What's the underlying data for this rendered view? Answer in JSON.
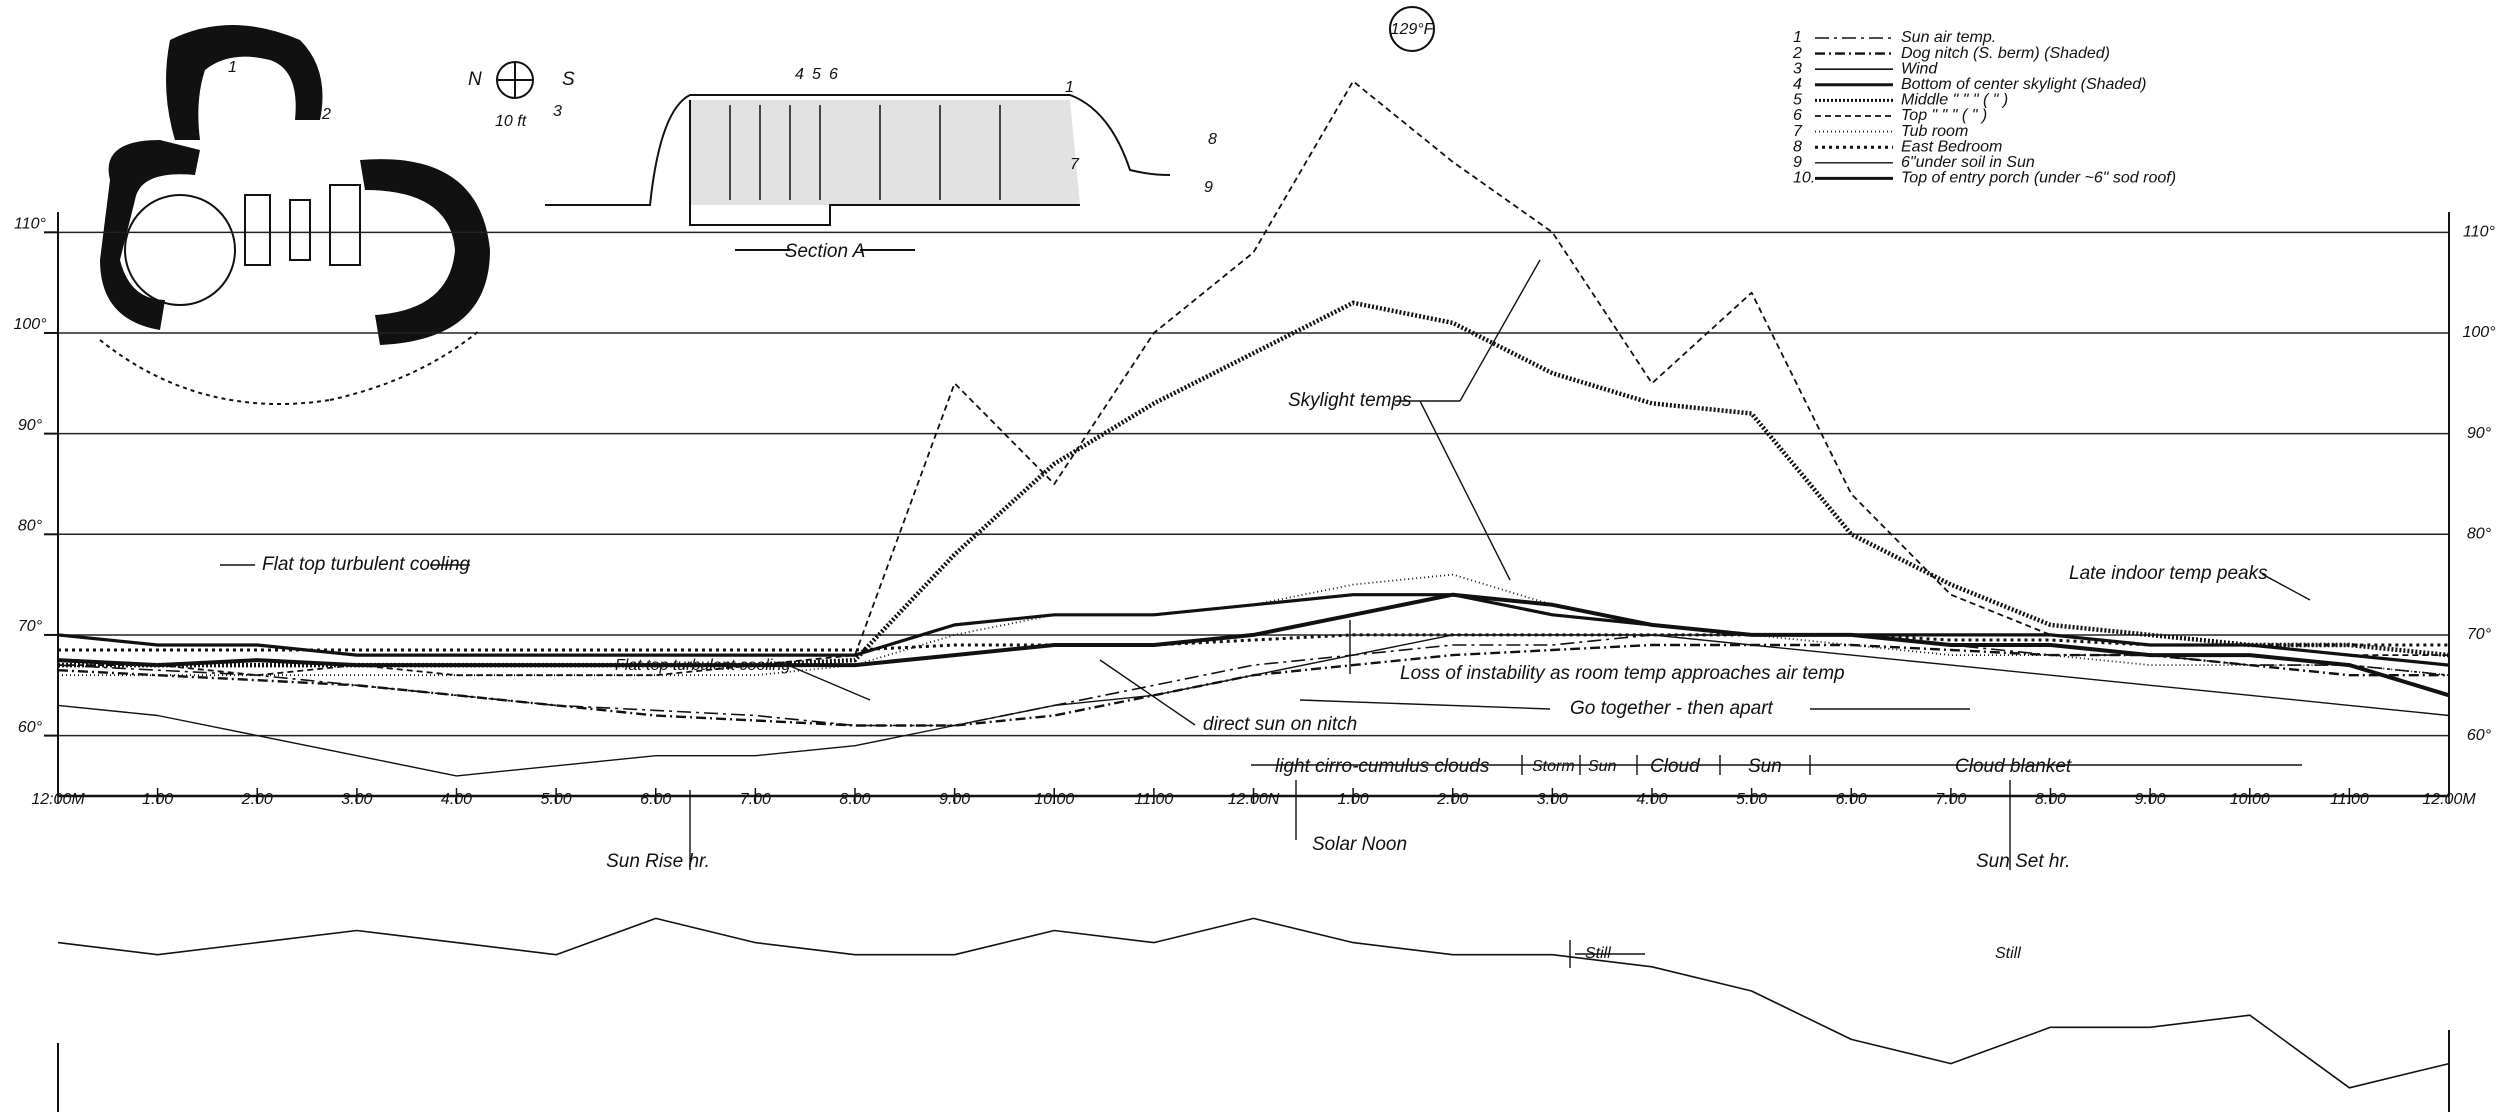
{
  "chart_data": {
    "type": "line",
    "categories": [
      "12:00M",
      "1:00",
      "2:00",
      "3:00",
      "4:00",
      "5:00",
      "6:00",
      "7:00",
      "8:00",
      "9:00",
      "10:00",
      "11:00",
      "12:00N",
      "1:00",
      "2:00",
      "3:00",
      "4:00",
      "5:00",
      "6:00",
      "7:00",
      "8:00",
      "9:00",
      "10:00",
      "11:00",
      "12:00M"
    ],
    "ylim": [
      54,
      130
    ],
    "yticks": [
      {
        "value": 60,
        "label": "60°"
      },
      {
        "value": 70,
        "label": "70°"
      },
      {
        "value": 80,
        "label": "80°"
      },
      {
        "value": 90,
        "label": "90°"
      },
      {
        "value": 100,
        "label": "100°"
      },
      {
        "value": 110,
        "label": "110°"
      }
    ],
    "y2lim": [
      0,
      10
    ],
    "grid": true,
    "series": [
      {
        "key": "1",
        "name": "Sun air temp.",
        "color": "#111",
        "dash": "14 5 3 5",
        "width": 1.6,
        "values": [
          67,
          66.5,
          66,
          65,
          64,
          63,
          62.5,
          62,
          61,
          61,
          63,
          65,
          67,
          68,
          69,
          69,
          70,
          70,
          70,
          69,
          68,
          68,
          67,
          67,
          66
        ]
      },
      {
        "key": "2",
        "name": "Dog nitch (S. berm) (Shaded)",
        "color": "#111",
        "dash": "10 4 2 4",
        "width": 2.4,
        "values": [
          66.5,
          66,
          65.5,
          65,
          64,
          63,
          62,
          61.5,
          61,
          61,
          62,
          64,
          66,
          67,
          68,
          68.5,
          69,
          69,
          69,
          68.5,
          68,
          68,
          67,
          66,
          66
        ]
      },
      {
        "key": "3",
        "name": "Wind",
        "color": "#111",
        "dash": "",
        "width": 1.6,
        "axis": "y2",
        "values": [
          7,
          6.5,
          7,
          7.5,
          7,
          6.5,
          8,
          7,
          6.5,
          6.5,
          7.5,
          7,
          8,
          7,
          6.5,
          6.5,
          6,
          5,
          3,
          2,
          3.5,
          3.5,
          4,
          1,
          2
        ]
      },
      {
        "key": "4",
        "name": "Bottom of center skylight (Shaded)",
        "color": "#111",
        "dash": "",
        "width": 4,
        "values": [
          67.5,
          67,
          67.5,
          67,
          67,
          67,
          67,
          67,
          67,
          68,
          69,
          69,
          70,
          72,
          74,
          73,
          71,
          70,
          70,
          69,
          69,
          68,
          68,
          67,
          64
        ]
      },
      {
        "key": "5",
        "name": "Middle \"  \"  \"  ( \" )",
        "color": "#111",
        "dash": "2 2",
        "width": 4.5,
        "values": [
          67,
          67,
          67,
          67,
          67,
          67,
          67,
          67,
          67.5,
          78,
          87,
          93,
          98,
          103,
          101,
          96,
          93,
          92,
          80,
          75,
          71,
          70,
          69,
          69,
          68
        ]
      },
      {
        "key": "6",
        "name": "Top  \"  \"  \"  ( \" )",
        "color": "#111",
        "dash": "6 4",
        "width": 1.8,
        "values": [
          67,
          67,
          66,
          67,
          66,
          66,
          66,
          67,
          68,
          95,
          85,
          100,
          108,
          125,
          117,
          110,
          95,
          104,
          84,
          74,
          70,
          69,
          69,
          68,
          68
        ]
      },
      {
        "key": "7",
        "name": "Tub room",
        "color": "#111",
        "dash": "1 3",
        "width": 1.8,
        "values": [
          66,
          66,
          66,
          66,
          66,
          66,
          66,
          66,
          67,
          70,
          72,
          72,
          73,
          75,
          76,
          73,
          71,
          70,
          69,
          68,
          68,
          67,
          67,
          67,
          66
        ]
      },
      {
        "key": "8",
        "name": "East Bedroom",
        "color": "#111",
        "dash": "3 4",
        "width": 3,
        "values": [
          68.5,
          68.5,
          68.5,
          68.5,
          68.5,
          68.5,
          68.5,
          68.5,
          68.5,
          69,
          69,
          69,
          69.5,
          70,
          70,
          70,
          70,
          70,
          70,
          69.5,
          69.5,
          69,
          69,
          69,
          69
        ]
      },
      {
        "key": "9",
        "name": "6\"under soil in Sun",
        "color": "#111",
        "dash": "",
        "width": 1.4,
        "values": [
          63,
          62,
          60,
          58,
          56,
          57,
          58,
          58,
          59,
          61,
          63,
          64,
          66,
          68,
          70,
          70,
          70,
          69,
          68,
          67,
          66,
          65,
          64,
          63,
          62
        ]
      },
      {
        "key": "10.",
        "name": "Top of entry porch (under ~6\" sod roof)",
        "color": "#111",
        "dash": "",
        "width": 3.2,
        "values": [
          70,
          69,
          69,
          68,
          68,
          68,
          68,
          68,
          68,
          71,
          72,
          72,
          73,
          74,
          74,
          72,
          71,
          70,
          70,
          70,
          70,
          69,
          69,
          68,
          67
        ]
      }
    ],
    "peak_label": "129°F",
    "annotations": [
      "Flat top turbulent cooling",
      "Flat top turbulent cooling",
      "Skylight temps",
      "Late indoor temp peaks",
      "Loss of instability as room temp approaches air temp",
      "Go together - then apart",
      "direct sun on nitch",
      "Sun Rise hr.",
      "Solar Noon",
      "Sun Set hr.",
      "Still",
      "Still"
    ],
    "sky": [
      "light cirro-cumulus clouds",
      "Storm",
      "Sun",
      "Cloud",
      "Sun",
      "Cloud blanket"
    ]
  },
  "drawings": {
    "section_title": "Section A",
    "north": "N",
    "south": "S",
    "scale": "10 ft",
    "section_marks": [
      "4",
      "5",
      "6",
      "1",
      "7",
      "8",
      "9"
    ],
    "plan_marks": [
      "1",
      "2",
      "3"
    ]
  }
}
